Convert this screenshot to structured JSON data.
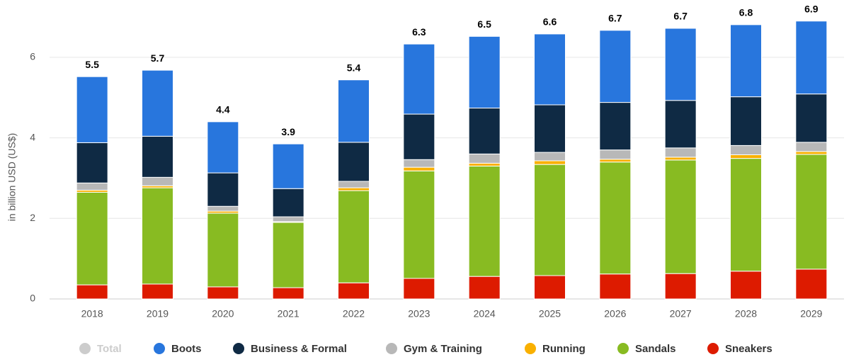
{
  "chart_data": {
    "type": "stacked_bar",
    "y_label": "in billion USD (US$)",
    "categories": [
      "2018",
      "2019",
      "2020",
      "2021",
      "2022",
      "2023",
      "2024",
      "2025",
      "2026",
      "2027",
      "2028",
      "2029"
    ],
    "series": [
      {
        "name": "Total",
        "color": "#cccccc",
        "hidden": true,
        "values": [
          5.5,
          5.7,
          4.4,
          3.9,
          5.4,
          6.3,
          6.5,
          6.6,
          6.7,
          6.7,
          6.8,
          6.9
        ]
      },
      {
        "name": "Boots",
        "color": "#2876dd",
        "values": [
          1.64,
          1.64,
          1.27,
          1.11,
          1.55,
          1.74,
          1.78,
          1.76,
          1.79,
          1.79,
          1.79,
          1.81
        ]
      },
      {
        "name": "Business & Formal",
        "color": "#0f2a44",
        "values": [
          1.0,
          1.02,
          0.83,
          0.7,
          0.97,
          1.13,
          1.14,
          1.18,
          1.18,
          1.18,
          1.21,
          1.2
        ]
      },
      {
        "name": "Gym & Training",
        "color": "#b8b8b8",
        "values": [
          0.18,
          0.21,
          0.12,
          0.12,
          0.16,
          0.19,
          0.23,
          0.21,
          0.23,
          0.23,
          0.23,
          0.23
        ]
      },
      {
        "name": "Running",
        "color": "#f9b000",
        "values": [
          0.05,
          0.05,
          0.05,
          0.02,
          0.07,
          0.09,
          0.07,
          0.09,
          0.07,
          0.07,
          0.09,
          0.07
        ]
      },
      {
        "name": "Sandals",
        "color": "#88bb22",
        "values": [
          2.3,
          2.39,
          1.83,
          1.62,
          2.29,
          2.67,
          2.74,
          2.76,
          2.78,
          2.82,
          2.8,
          2.85
        ]
      },
      {
        "name": "Sneakers",
        "color": "#dd1b00",
        "values": [
          0.35,
          0.37,
          0.3,
          0.28,
          0.4,
          0.51,
          0.56,
          0.58,
          0.62,
          0.63,
          0.69,
          0.74
        ]
      }
    ],
    "ylim": [
      0,
      7.3
    ],
    "yticks": [
      0,
      2,
      4,
      6
    ],
    "grid": true,
    "legend": "bottom"
  }
}
